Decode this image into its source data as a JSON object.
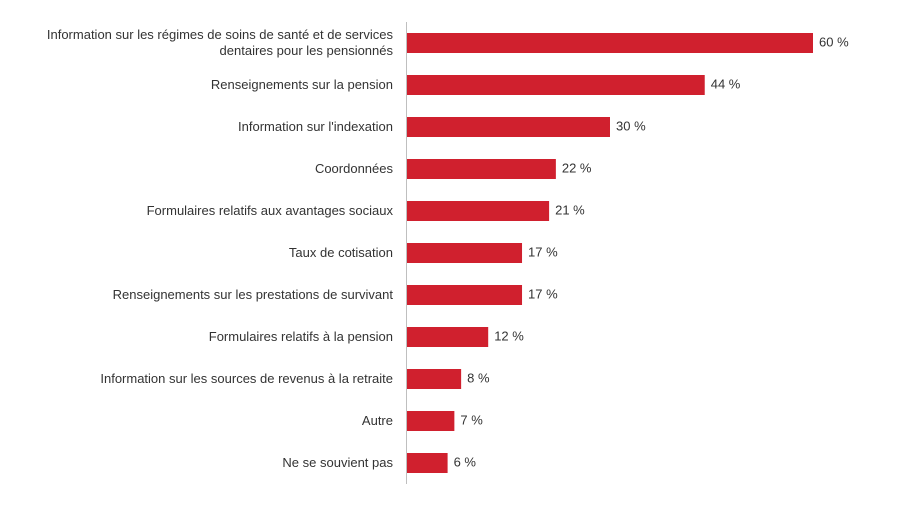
{
  "chart_data": {
    "type": "bar",
    "orientation": "horizontal",
    "categories": [
      "Information sur les régimes de soins de santé et de services\ndentaires pour les pensionnés",
      "Renseignements sur la pension",
      "Information sur l'indexation",
      "Coordonnées",
      "Formulaires relatifs aux avantages sociaux",
      "Taux de cotisation",
      "Renseignements sur les prestations de survivant",
      "Formulaires relatifs à la pension",
      "Information sur les sources de revenus à la retraite",
      "Autre",
      "Ne se souvient pas"
    ],
    "values": [
      60,
      44,
      30,
      22,
      21,
      17,
      17,
      12,
      8,
      7,
      6
    ],
    "value_labels": [
      "60 %",
      "44 %",
      "30 %",
      "22 %",
      "21 %",
      "17 %",
      "17 %",
      "12 %",
      "8 %",
      "7 %",
      "6 %"
    ],
    "color": "#d0202e"
  }
}
